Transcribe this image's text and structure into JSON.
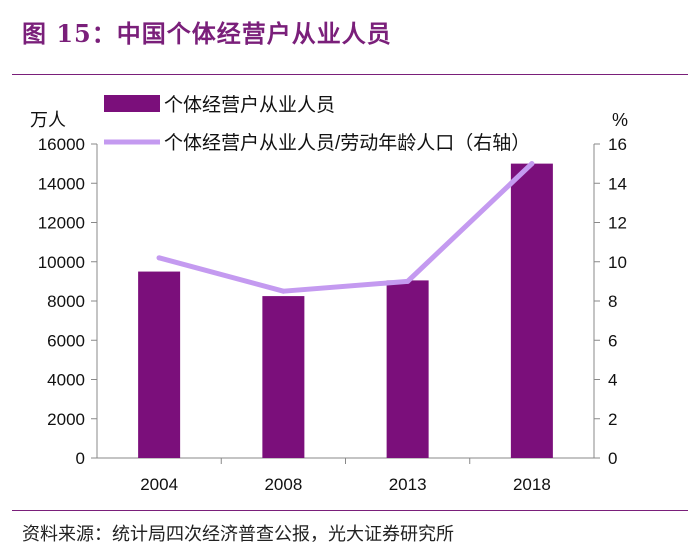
{
  "figure_title": "图 15：中国个体经营户从业人员",
  "source_text": "资料来源：统计局四次经济普查公报，光大证券研究所",
  "colors": {
    "accent": "#7a1f7a",
    "bar": "#7b0f7b",
    "line": "#c49af0"
  },
  "chart_data": {
    "type": "bar",
    "categories": [
      "2004",
      "2008",
      "2013",
      "2018"
    ],
    "left_unit": "万人",
    "right_unit": "%",
    "ylim_left": [
      0,
      16000
    ],
    "ylim_right": [
      0,
      16
    ],
    "y_ticks_left": [
      "0",
      "2000",
      "4000",
      "6000",
      "8000",
      "10000",
      "12000",
      "14000",
      "16000"
    ],
    "y_ticks_right": [
      "0",
      "2",
      "4",
      "6",
      "8",
      "10",
      "12",
      "14",
      "16"
    ],
    "grid": false,
    "legend_position": "top",
    "series": [
      {
        "name": "个体经营户从业人员",
        "type": "bar",
        "axis": "left",
        "values": [
          9500,
          8250,
          9050,
          15000
        ]
      },
      {
        "name": "个体经营户从业人员/劳动年龄人口（右轴）",
        "type": "line",
        "axis": "right",
        "values": [
          10.2,
          8.5,
          9.0,
          15.0
        ]
      }
    ]
  }
}
